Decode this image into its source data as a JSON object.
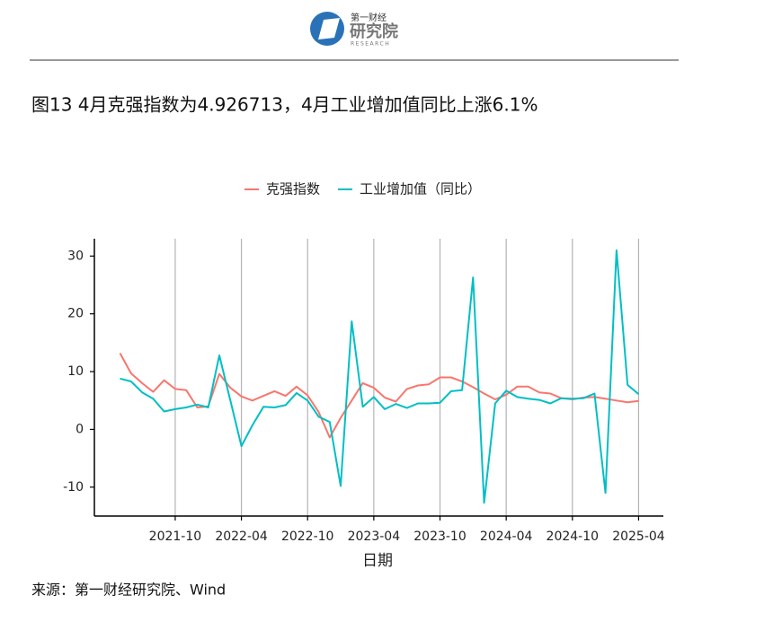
{
  "header": {
    "logo_top": "第一财经",
    "logo_main": "研究院",
    "logo_en": "RESEARCH"
  },
  "chart_data": {
    "type": "line",
    "title": "图13 4月克强指数为4.926713，4月工业增加值同比上涨6.1%",
    "x_label": "日期",
    "source": "来源：第一财经研究院、Wind",
    "x": [
      "2021-05",
      "2021-06",
      "2021-07",
      "2021-08",
      "2021-09",
      "2021-10",
      "2021-11",
      "2021-12",
      "2022-01",
      "2022-02",
      "2022-03",
      "2022-04",
      "2022-05",
      "2022-06",
      "2022-07",
      "2022-08",
      "2022-09",
      "2022-10",
      "2022-11",
      "2022-12",
      "2023-01",
      "2023-02",
      "2023-03",
      "2023-04",
      "2023-05",
      "2023-06",
      "2023-07",
      "2023-08",
      "2023-09",
      "2023-10",
      "2023-11",
      "2023-12",
      "2024-01",
      "2024-02",
      "2024-03",
      "2024-04",
      "2024-05",
      "2024-06",
      "2024-07",
      "2024-08",
      "2024-09",
      "2024-10",
      "2024-11",
      "2024-12",
      "2025-01",
      "2025-02",
      "2025-03",
      "2025-04"
    ],
    "series": [
      {
        "name": "克强指数",
        "color": "#f8766d",
        "values": [
          13.2,
          9.7,
          8.0,
          6.5,
          8.5,
          7.0,
          6.8,
          3.8,
          4.0,
          9.6,
          7.2,
          5.7,
          5.0,
          5.8,
          6.6,
          5.8,
          7.4,
          5.9,
          3.0,
          -1.4,
          2.0,
          5.0,
          8.0,
          7.2,
          5.5,
          4.8,
          7.0,
          7.6,
          7.8,
          9.0,
          9.0,
          8.3,
          7.3,
          6.2,
          5.2,
          6.0,
          7.4,
          7.4,
          6.4,
          6.2,
          5.4,
          5.2,
          5.5,
          5.6,
          5.3,
          5.0,
          4.7,
          4.926713
        ]
      },
      {
        "name": "工业增加值（同比）",
        "color": "#00bfc4",
        "values": [
          8.8,
          8.3,
          6.4,
          5.3,
          3.1,
          3.5,
          3.8,
          4.3,
          3.8,
          12.8,
          5.0,
          -2.9,
          0.7,
          3.9,
          3.8,
          4.2,
          6.3,
          5.0,
          2.2,
          1.3,
          -9.8,
          18.7,
          3.9,
          5.6,
          3.5,
          4.4,
          3.7,
          4.5,
          4.5,
          4.6,
          6.6,
          6.8,
          26.3,
          -12.7,
          4.5,
          6.7,
          5.6,
          5.3,
          5.1,
          4.5,
          5.4,
          5.3,
          5.4,
          6.2,
          -11.0,
          31.0,
          7.7,
          6.1
        ]
      }
    ],
    "xlim": [
      "2021-03",
      "2025-06"
    ],
    "xticks": [
      "2021-10",
      "2022-04",
      "2022-10",
      "2023-04",
      "2023-10",
      "2024-04",
      "2024-10",
      "2025-04"
    ],
    "ylim": [
      -15,
      33
    ],
    "yticks": [
      -10,
      0,
      10,
      20,
      30
    ],
    "grid": "x",
    "legend": "top"
  }
}
